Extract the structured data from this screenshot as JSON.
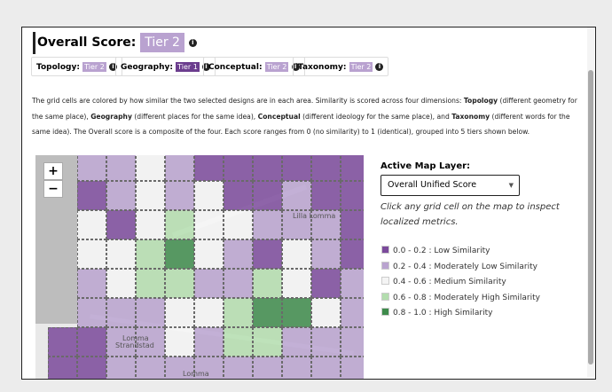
{
  "header": {
    "label": "Overall Score:",
    "tier": "Tier 2"
  },
  "metrics": [
    {
      "label": "Topology:",
      "tier": "Tier 2",
      "tier_color": "#b9a2d0"
    },
    {
      "label": "Geography:",
      "tier": "Tier 1",
      "tier_color": "#6b3d8e"
    },
    {
      "label": "Conceptual:",
      "tier": "Tier 2",
      "tier_color": "#b9a2d0"
    },
    {
      "label": "Taxonomy:",
      "tier": "Tier 2",
      "tier_color": "#b9a2d0"
    }
  ],
  "description": [
    {
      "text": "The grid cells are colored by how similar the two selected designs are in each area. Similarity is scored across four dimensions: ",
      "bold": false
    },
    {
      "text": "Topology",
      "bold": true
    },
    {
      "text": " (different geometry for the same place), ",
      "bold": false
    },
    {
      "text": "Geography",
      "bold": true
    },
    {
      "text": " (different places for the same idea), ",
      "bold": false
    },
    {
      "text": "Conceptual",
      "bold": true
    },
    {
      "text": " (different ideology for the same place), and ",
      "bold": false
    },
    {
      "text": "Taxonomy",
      "bold": true
    },
    {
      "text": " (different words for the same idea). The Overall score is a composite of the four. Each score ranges from 0 (no similarity) to 1 (identical), grouped into 5 tiers shown below.",
      "bold": false
    }
  ],
  "map": {
    "zoom_in": "+",
    "zoom_out": "−",
    "place_labels": [
      "Lilla Lomma",
      "Lomma",
      "Strandstad",
      "Lomma"
    ],
    "cells": [
      [
        null,
        2,
        2,
        3,
        2,
        1,
        1,
        1,
        1,
        1,
        1
      ],
      [
        null,
        1,
        2,
        3,
        2,
        3,
        1,
        1,
        2,
        1,
        1
      ],
      [
        null,
        3,
        1,
        3,
        4,
        3,
        3,
        2,
        2,
        2,
        1
      ],
      [
        null,
        3,
        3,
        4,
        5,
        3,
        2,
        1,
        3,
        2,
        1
      ],
      [
        null,
        2,
        3,
        4,
        4,
        2,
        2,
        4,
        3,
        1,
        2
      ],
      [
        null,
        2,
        2,
        2,
        3,
        3,
        4,
        5,
        5,
        3,
        2
      ],
      [
        1,
        1,
        2,
        2,
        3,
        2,
        4,
        4,
        2,
        2,
        2
      ],
      [
        1,
        1,
        2,
        2,
        2,
        2,
        2,
        2,
        2,
        2,
        2
      ]
    ]
  },
  "panel": {
    "layer_label": "Active Map Layer:",
    "layer_value": "Overall Unified Score",
    "help": "Click any grid cell on the map to inspect localized metrics.",
    "legend": [
      {
        "label": "0.0 - 0.2 : Low Similarity",
        "color": "#7b4a9b"
      },
      {
        "label": "0.2 - 0.4 : Moderately Low Similarity",
        "color": "#b9a3cf"
      },
      {
        "label": "0.4 - 0.6 : Medium Similarity",
        "color": "#f4f4f4"
      },
      {
        "label": "0.6 - 0.8 : Moderately High Similarity",
        "color": "#b3ddae"
      },
      {
        "label": "0.8 - 1.0 : High Similarity",
        "color": "#3e8b4b"
      }
    ]
  }
}
